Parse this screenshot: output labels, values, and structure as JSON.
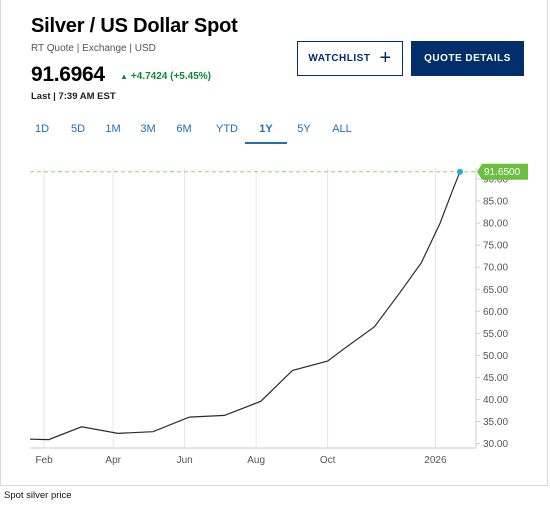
{
  "header": {
    "title": "Silver / US Dollar Spot",
    "meta": "RT Quote | Exchange | USD",
    "price": "91.6964",
    "change": "+4.7424 (+5.45%)",
    "last": "Last | 7:39 AM EST"
  },
  "buttons": {
    "watchlist": "WATCHLIST",
    "quote_details": "QUOTE DETAILS"
  },
  "tabs": [
    "1D",
    "5D",
    "1M",
    "3M",
    "6M",
    "YTD",
    "1Y",
    "5Y",
    "ALL"
  ],
  "active_tab": "1Y",
  "caption": "Spot silver price",
  "colors": {
    "positive": "#0b8a37",
    "brand": "#002f6c",
    "line": "#2b2b2b",
    "last_label": "#6cbf3f",
    "dot": "#29a8e0"
  },
  "chart_data": {
    "type": "line",
    "x_ticks": [
      "Feb",
      "Apr",
      "Jun",
      "Aug",
      "Oct",
      "2026"
    ],
    "y_ticks": [
      "30.00",
      "35.00",
      "40.00",
      "45.00",
      "50.00",
      "55.00",
      "60.00",
      "65.00",
      "70.00",
      "75.00",
      "80.00",
      "85.00",
      "90.00"
    ],
    "ylim": [
      30,
      92
    ],
    "last_value_label": "91.6500",
    "grid": "vertical",
    "series": [
      {
        "points": [
          [
            "2025-01-20",
            31.0
          ],
          [
            "2025-02-05",
            30.9
          ],
          [
            "2025-03-05",
            33.8
          ],
          [
            "2025-04-05",
            32.3
          ],
          [
            "2025-05-05",
            32.7
          ],
          [
            "2025-06-05",
            36.0
          ],
          [
            "2025-07-05",
            36.4
          ],
          [
            "2025-08-05",
            39.6
          ],
          [
            "2025-09-01",
            46.6
          ],
          [
            "2025-10-01",
            48.7
          ],
          [
            "2025-10-15",
            51.5
          ],
          [
            "2025-11-10",
            56.5
          ],
          [
            "2025-12-01",
            64.0
          ],
          [
            "2025-12-20",
            71.0
          ],
          [
            "2026-01-05",
            80.0
          ],
          [
            "2026-01-15",
            87.0
          ],
          [
            "2026-01-22",
            91.65
          ]
        ]
      }
    ]
  }
}
